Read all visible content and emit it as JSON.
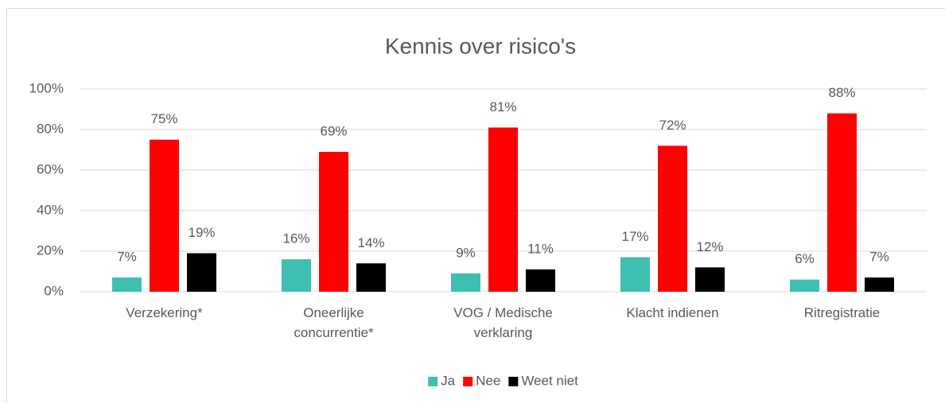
{
  "chart_data": {
    "type": "bar",
    "title": "Kennis over risico's",
    "categories": [
      "Verzekering*",
      "Oneerlijke concurrentie*",
      "VOG / Medische verklaring",
      "Klacht indienen",
      "Ritregistratie"
    ],
    "series": [
      {
        "name": "Ja",
        "color": "#3ebfb0",
        "values": [
          7,
          16,
          9,
          17,
          6
        ],
        "value_labels": [
          "7%",
          "16%",
          "9%",
          "17%",
          "6%"
        ]
      },
      {
        "name": "Nee",
        "color": "#ff0000",
        "values": [
          75,
          69,
          81,
          72,
          88
        ],
        "value_labels": [
          "75%",
          "69%",
          "81%",
          "72%",
          "88%"
        ]
      },
      {
        "name": "Weet niet",
        "color": "#000000",
        "values": [
          19,
          14,
          11,
          12,
          7
        ],
        "value_labels": [
          "19%",
          "14%",
          "11%",
          "12%",
          "7%"
        ]
      }
    ],
    "ylim": [
      0,
      100
    ],
    "yticks": [
      {
        "value": 0,
        "label": "0%"
      },
      {
        "value": 20,
        "label": "20%"
      },
      {
        "value": 40,
        "label": "40%"
      },
      {
        "value": 60,
        "label": "60%"
      },
      {
        "value": 80,
        "label": "80%"
      },
      {
        "value": 100,
        "label": "100%"
      }
    ],
    "grid": true,
    "legend": "bottom"
  }
}
